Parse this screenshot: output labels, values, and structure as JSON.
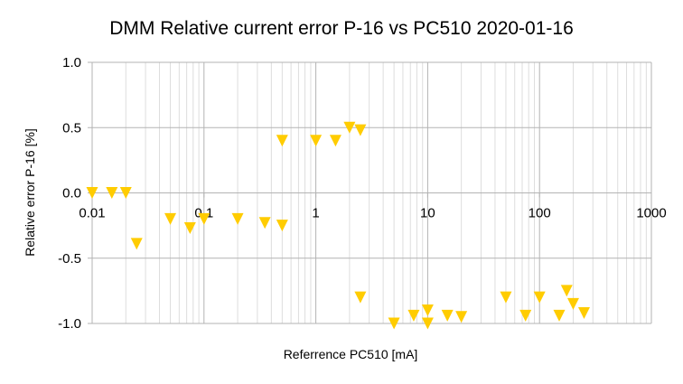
{
  "chart_data": {
    "type": "scatter",
    "title": "DMM Relative current error P-16 vs PC510 2020-01-16",
    "xlabel": "Referrence PC510 [mA]",
    "ylabel": "Relative error P-16 [%]",
    "x_scale": "log",
    "xlim": [
      0.01,
      1000
    ],
    "ylim": [
      -1.0,
      1.0
    ],
    "x_ticks": [
      "0.01",
      "0.1",
      "1",
      "10",
      "100",
      "1000"
    ],
    "y_ticks": [
      "1.0",
      "0.5",
      "0.0",
      "-0.5",
      "-1.0"
    ],
    "grid": true,
    "legend": "none",
    "marker": "triangle-down",
    "marker_color": "#ffcc00",
    "points": [
      {
        "x": 0.01,
        "y": 0.0
      },
      {
        "x": 0.015,
        "y": 0.0
      },
      {
        "x": 0.02,
        "y": 0.0
      },
      {
        "x": 0.025,
        "y": -0.39
      },
      {
        "x": 0.05,
        "y": -0.2
      },
      {
        "x": 0.075,
        "y": -0.27
      },
      {
        "x": 0.1,
        "y": -0.2
      },
      {
        "x": 0.2,
        "y": -0.2
      },
      {
        "x": 0.35,
        "y": -0.23
      },
      {
        "x": 0.5,
        "y": -0.25
      },
      {
        "x": 0.5,
        "y": 0.4
      },
      {
        "x": 1.0,
        "y": 0.4
      },
      {
        "x": 1.5,
        "y": 0.4
      },
      {
        "x": 2.0,
        "y": 0.5
      },
      {
        "x": 2.5,
        "y": 0.48
      },
      {
        "x": 2.5,
        "y": -0.8
      },
      {
        "x": 5.0,
        "y": -1.0
      },
      {
        "x": 7.5,
        "y": -0.94
      },
      {
        "x": 10.0,
        "y": -0.9
      },
      {
        "x": 10.0,
        "y": -1.0
      },
      {
        "x": 15.0,
        "y": -0.94
      },
      {
        "x": 20.0,
        "y": -0.95
      },
      {
        "x": 50.0,
        "y": -0.8
      },
      {
        "x": 75.0,
        "y": -0.94
      },
      {
        "x": 100.0,
        "y": -0.8
      },
      {
        "x": 150.0,
        "y": -0.94
      },
      {
        "x": 175.0,
        "y": -0.75
      },
      {
        "x": 200.0,
        "y": -0.85
      },
      {
        "x": 250.0,
        "y": -0.92
      }
    ]
  }
}
